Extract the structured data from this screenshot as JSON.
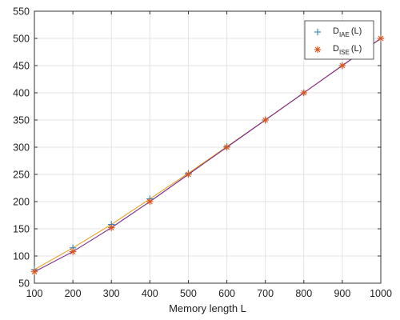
{
  "chart_data": {
    "type": "line",
    "xlabel": "Memory length L",
    "ylabel": "",
    "xlim": [
      100,
      1000
    ],
    "ylim": [
      50,
      550
    ],
    "xticks": [
      100,
      200,
      300,
      400,
      500,
      600,
      700,
      800,
      900,
      1000
    ],
    "yticks": [
      50,
      100,
      150,
      200,
      250,
      300,
      350,
      400,
      450,
      500,
      550
    ],
    "grid": true,
    "legend_position": "top-right",
    "x": [
      100,
      200,
      300,
      400,
      500,
      600,
      700,
      800,
      900,
      1000
    ],
    "series": [
      {
        "legend_main": "D",
        "legend_sub": "IAE",
        "legend_suffix": "(L)",
        "color": "#2f82c6",
        "line_color": "#e8a020",
        "marker": "plus",
        "values": [
          75,
          115,
          158,
          205,
          252,
          301,
          350,
          400,
          450,
          500
        ]
      },
      {
        "legend_main": "D",
        "legend_sub": "ISE",
        "legend_suffix": "(L)",
        "color": "#d9541c",
        "line_color": "#7b2a8c",
        "marker": "asterisk",
        "values": [
          71,
          108,
          152,
          200,
          250,
          300,
          350,
          400,
          450,
          500
        ]
      }
    ]
  }
}
